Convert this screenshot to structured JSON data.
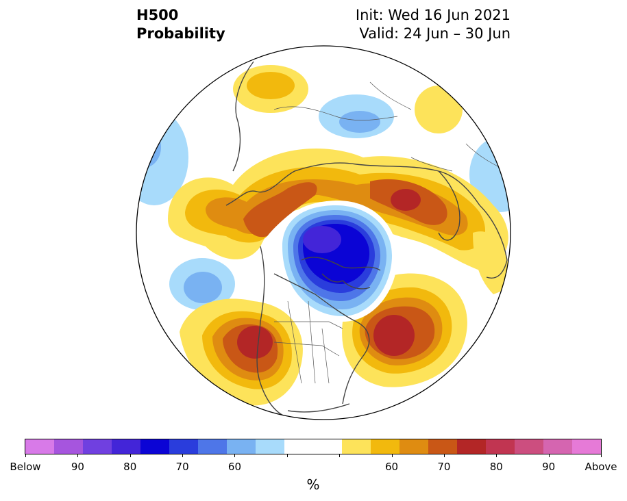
{
  "title": {
    "left_line1": "H500",
    "left_line2": "Probability",
    "right_line1": "Init: Wed 16 Jun 2021",
    "right_line2": "Valid: 24 Jun – 30 Jun"
  },
  "colorbar": {
    "colors": [
      "#d87ae8",
      "#a655de",
      "#7040e0",
      "#4325d8",
      "#0b04d5",
      "#2a3ddc",
      "#4e76e8",
      "#79b2f2",
      "#a8dbfb",
      "#ffffff",
      "#ffffff",
      "#fde35a",
      "#f2b90d",
      "#df8c11",
      "#c95716",
      "#b32626",
      "#c13551",
      "#cc4e7f",
      "#d565b0",
      "#e67ad7"
    ],
    "tick_labels": [
      "Below",
      "90",
      "80",
      "70",
      "60",
      "",
      "",
      "60",
      "70",
      "80",
      "90",
      "Above"
    ],
    "unit": "%"
  },
  "map": {
    "projection": "north polar stereographic",
    "variable": "H500 probability",
    "features": [
      {
        "name": "polar-vortex-below-90",
        "category": "below",
        "level": 85
      },
      {
        "name": "western-north-america-ridge",
        "category": "above",
        "level": 75
      },
      {
        "name": "north-atlantic-ridge",
        "category": "above",
        "level": 75
      },
      {
        "name": "eastern-europe-ridge",
        "category": "above",
        "level": 75
      },
      {
        "name": "siberia-ridge",
        "category": "above",
        "level": 65
      },
      {
        "name": "north-pacific-trough",
        "category": "below",
        "level": 65
      },
      {
        "name": "central-asia-trough",
        "category": "below",
        "level": 65
      },
      {
        "name": "eastern-asia-trough",
        "category": "below",
        "level": 60
      }
    ]
  }
}
